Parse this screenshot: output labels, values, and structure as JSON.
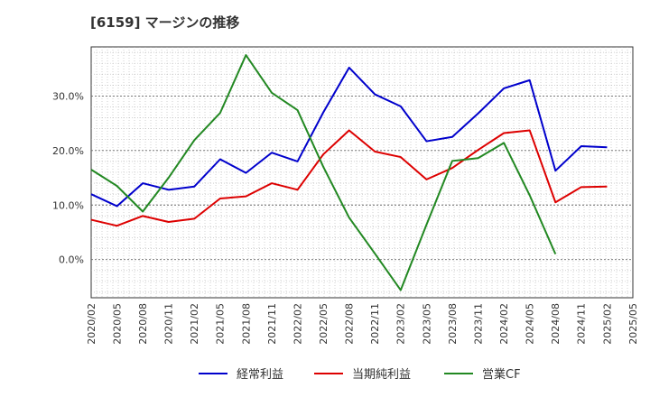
{
  "title": "[6159]  マージンの推移",
  "chart_data": {
    "type": "line",
    "title": "[6159]  マージンの推移",
    "xlabel": "",
    "ylabel": "",
    "x": [
      "2020/02",
      "2020/05",
      "2020/08",
      "2020/11",
      "2021/02",
      "2021/05",
      "2021/08",
      "2021/11",
      "2022/02",
      "2022/05",
      "2022/08",
      "2022/11",
      "2023/02",
      "2023/05",
      "2023/08",
      "2023/11",
      "2024/02",
      "2024/05",
      "2024/08",
      "2024/11",
      "2025/02",
      "2025/05"
    ],
    "y_ticks": [
      0,
      10,
      20,
      30
    ],
    "y_tick_labels": [
      "0.0%",
      "10.0%",
      "20.0%",
      "30.0%"
    ],
    "ylim": [
      -7,
      39
    ],
    "grid": true,
    "legend_position": "bottom",
    "series": [
      {
        "name": "経常利益",
        "color": "#0000cc",
        "values": [
          12.0,
          9.8,
          14.0,
          12.8,
          13.4,
          18.4,
          15.9,
          19.6,
          18.0,
          27.0,
          35.2,
          30.3,
          28.1,
          21.7,
          22.5,
          26.8,
          31.4,
          32.9,
          16.3,
          20.8,
          20.6,
          null
        ]
      },
      {
        "name": "当期純利益",
        "color": "#dd0000",
        "values": [
          7.3,
          6.2,
          8.0,
          6.9,
          7.5,
          11.2,
          11.6,
          14.0,
          12.8,
          19.3,
          23.7,
          19.8,
          18.8,
          14.7,
          16.8,
          20.1,
          23.2,
          23.7,
          10.5,
          13.3,
          13.4,
          null
        ]
      },
      {
        "name": "営業CF",
        "color": "#228822",
        "values": [
          16.5,
          13.5,
          8.8,
          15.0,
          21.9,
          26.9,
          37.5,
          30.6,
          27.4,
          17.0,
          7.7,
          1.1,
          -5.6,
          6.4,
          18.1,
          18.6,
          21.4,
          11.8,
          1.0,
          null,
          null,
          null
        ]
      }
    ]
  }
}
